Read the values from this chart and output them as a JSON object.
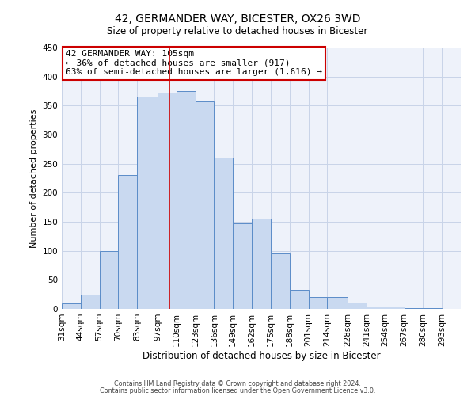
{
  "title": "42, GERMANDER WAY, BICESTER, OX26 3WD",
  "subtitle": "Size of property relative to detached houses in Bicester",
  "xlabel": "Distribution of detached houses by size in Bicester",
  "ylabel": "Number of detached properties",
  "bar_labels": [
    "31sqm",
    "44sqm",
    "57sqm",
    "70sqm",
    "83sqm",
    "97sqm",
    "110sqm",
    "123sqm",
    "136sqm",
    "149sqm",
    "162sqm",
    "175sqm",
    "188sqm",
    "201sqm",
    "214sqm",
    "228sqm",
    "241sqm",
    "254sqm",
    "267sqm",
    "280sqm",
    "293sqm"
  ],
  "bar_heights": [
    10,
    25,
    100,
    230,
    365,
    372,
    375,
    357,
    260,
    147,
    155,
    95,
    33,
    21,
    21,
    11,
    4,
    4,
    2,
    2
  ],
  "bin_edges": [
    31,
    44,
    57,
    70,
    83,
    97,
    110,
    123,
    136,
    149,
    162,
    175,
    188,
    201,
    214,
    228,
    241,
    254,
    267,
    280,
    293
  ],
  "bar_color": "#c9d9f0",
  "bar_edge_color": "#5b8cc8",
  "property_line_x": 105,
  "property_line_color": "#cc0000",
  "ylim": [
    0,
    450
  ],
  "yticks": [
    0,
    50,
    100,
    150,
    200,
    250,
    300,
    350,
    400,
    450
  ],
  "annotation_text": "42 GERMANDER WAY: 105sqm\n← 36% of detached houses are smaller (917)\n63% of semi-detached houses are larger (1,616) →",
  "annotation_box_color": "#ffffff",
  "annotation_box_edge": "#cc0000",
  "footer_line1": "Contains HM Land Registry data © Crown copyright and database right 2024.",
  "footer_line2": "Contains public sector information licensed under the Open Government Licence v3.0.",
  "background_color": "#ffffff",
  "plot_bg_color": "#eef2fa",
  "grid_color": "#c8d4e8"
}
